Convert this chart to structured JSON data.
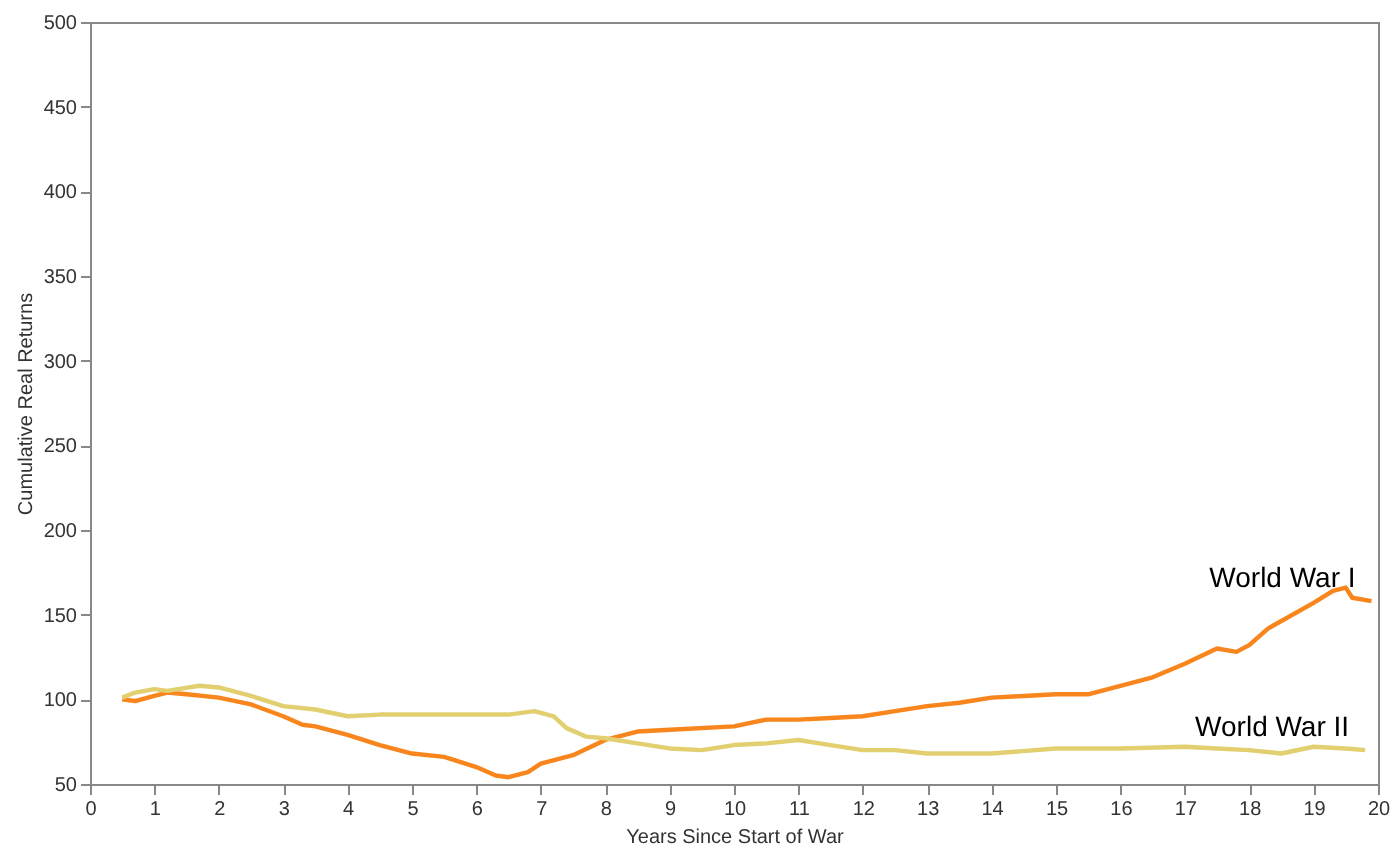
{
  "chart_data": {
    "type": "line",
    "xlabel": "Years Since Start of War",
    "ylabel": "Cumulative Real Returns",
    "xlim": [
      0,
      20
    ],
    "xticks": [
      0,
      1,
      2,
      3,
      4,
      5,
      6,
      7,
      8,
      9,
      10,
      11,
      12,
      13,
      14,
      15,
      16,
      17,
      18,
      19,
      20
    ],
    "ylim": [
      50,
      500
    ],
    "yticks": [
      50,
      100,
      150,
      200,
      250,
      300,
      350,
      400,
      450,
      500
    ],
    "series": [
      {
        "name": "World War I",
        "color": "#f8861d",
        "x": [
          0.5,
          0.7,
          1.0,
          1.2,
          1.5,
          2,
          2.5,
          3,
          3.3,
          3.5,
          4,
          4.5,
          5,
          5.5,
          6,
          6.3,
          6.5,
          6.8,
          7,
          7.5,
          8,
          8.5,
          9,
          10,
          10.5,
          11,
          11.5,
          12,
          12.5,
          13,
          13.5,
          14,
          14.5,
          15,
          15.5,
          16,
          16.5,
          17,
          17.5,
          17.8,
          18,
          18.3,
          19,
          19.3,
          19.5,
          19.6,
          19.9
        ],
        "values": [
          100,
          99,
          102,
          104,
          103,
          101,
          97,
          90,
          85,
          84,
          79,
          73,
          68,
          66,
          60,
          55,
          54,
          57,
          62,
          67,
          76,
          81,
          82,
          84,
          88,
          88,
          89,
          90,
          93,
          96,
          98,
          101,
          102,
          103,
          103,
          108,
          113,
          121,
          130,
          128,
          132,
          142,
          157,
          164,
          166,
          160,
          158
        ]
      },
      {
        "name": "World War II",
        "color": "#e2cf70",
        "x": [
          0.5,
          0.7,
          1,
          1.2,
          1.7,
          2,
          2.5,
          3,
          3.5,
          4,
          4.5,
          5,
          6,
          6.5,
          6.9,
          7.2,
          7.4,
          7.7,
          8,
          8.5,
          9,
          9.5,
          10,
          10.5,
          11,
          11.5,
          12,
          12.5,
          13,
          14,
          15,
          16,
          17,
          17.5,
          18,
          18.5,
          19,
          19.5,
          19.8
        ],
        "values": [
          101,
          104,
          106,
          105,
          108,
          107,
          102,
          96,
          94,
          90,
          91,
          91,
          91,
          91,
          93,
          90,
          83,
          78,
          77,
          74,
          71,
          70,
          73,
          74,
          76,
          73,
          70,
          70,
          68,
          68,
          71,
          71,
          72,
          71,
          70,
          68,
          72,
          71,
          70
        ]
      }
    ]
  }
}
